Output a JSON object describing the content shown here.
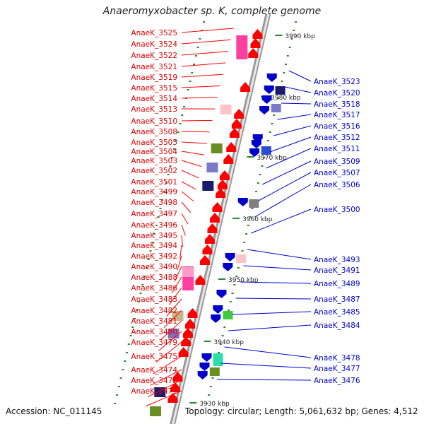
{
  "title": "Anaeromyxobacter sp. K, complete genome",
  "footer": {
    "accession": "Accession: NC_011145",
    "topology": "Topology: circular; Length: 5,061,632 bp; Genes: 4,512"
  },
  "colors": {
    "left_strand": "#ff0000",
    "right_strand": "#0000cc",
    "left_label": "#dd0000",
    "right_label": "#0000cc",
    "backbone": "#999999",
    "tick": "#2a8a2a"
  },
  "scale_labels": [
    "3990 kbp",
    "3980 kbp",
    "3970 kbp",
    "3960 kbp",
    "3950 kbp",
    "3940 kbp",
    "3930 kbp"
  ],
  "left_genes": [
    "AnaeK_3525",
    "AnaeK_3524",
    "AnaeK_3522",
    "AnaeK_3521",
    "AnaeK_3519",
    "AnaeK_3515",
    "AnaeK_3514",
    "AnaeK_3513",
    "AnaeK_3510",
    "AnaeK_3508",
    "AnaeK_3505",
    "AnaeK_3504",
    "AnaeK_3503",
    "AnaeK_3502",
    "AnaeK_3501",
    "AnaeK_3499",
    "AnaeK_3498",
    "AnaeK_3497",
    "AnaeK_3496",
    "AnaeK_3495",
    "AnaeK_3494",
    "AnaeK_3492",
    "AnaeK_3490",
    "AnaeK_3488",
    "AnaeK_3486",
    "AnaeK_3483",
    "AnaeK_3482",
    "AnaeK_3481",
    "AnaeK_3480",
    "AnaeK_3479",
    "AnaeK_3475",
    "AnaeK_3474",
    "AnaeK_3472",
    "AnaeK_3471"
  ],
  "right_genes": [
    "AnaeK_3523",
    "AnaeK_3520",
    "AnaeK_3518",
    "AnaeK_3517",
    "AnaeK_3516",
    "AnaeK_3512",
    "AnaeK_3511",
    "AnaeK_3509",
    "AnaeK_3507",
    "AnaeK_3506",
    "AnaeK_3500",
    "AnaeK_3493",
    "AnaeK_3491",
    "AnaeK_3489",
    "AnaeK_3487",
    "AnaeK_3485",
    "AnaeK_3484",
    "AnaeK_3478",
    "AnaeK_3477",
    "AnaeK_3476"
  ],
  "left_blocks": [
    "#ff3fa0",
    "#ffc4c8",
    "#6b8e23",
    "#7a7ac8",
    "#1a1a6e",
    "#ff3fa0",
    "#ff9ac8",
    "#c8b488",
    "#8070c0",
    "#1a1a6e",
    "#6b8e23"
  ],
  "right_blocks": [
    "#1a1a6e",
    "#7a7ac8",
    "#2a4fd0",
    "#ffc4c8",
    "#7f7f7f",
    "#3fcc3f",
    "#2ae0a8",
    "#6b8e23"
  ]
}
